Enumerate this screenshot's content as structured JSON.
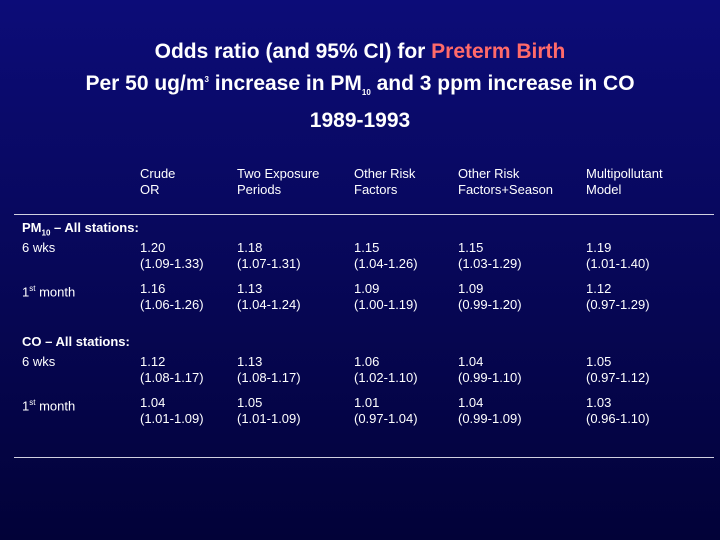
{
  "title": {
    "line1": "Odds ratio (and 95% CI) for ",
    "highlight": "Preterm Birth",
    "line2": [
      "Per 50 ug/m",
      "3",
      " increase in PM",
      "10",
      " and 3 ppm increase in CO"
    ],
    "line3": "1989-1993"
  },
  "table": {
    "headers": [
      [
        "Crude",
        "OR"
      ],
      [
        "Two Exposure",
        "Periods"
      ],
      [
        "Other Risk",
        "Factors"
      ],
      [
        "Other Risk",
        "Factors+Season"
      ],
      [
        "Multipollutant",
        "Model"
      ]
    ],
    "groups": [
      {
        "label": [
          "PM",
          "10",
          " – All stations:"
        ],
        "rows": [
          {
            "label": [
              "6 wks"
            ],
            "cells": [
              [
                "1.20",
                "(1.09-1.33)"
              ],
              [
                "1.18",
                "(1.07-1.31)"
              ],
              [
                "1.15",
                "(1.04-1.26)"
              ],
              [
                "1.15",
                "(1.03-1.29)"
              ],
              [
                "1.19",
                "(1.01-1.40)"
              ]
            ]
          },
          {
            "label": [
              "1",
              "st",
              " month"
            ],
            "cells": [
              [
                "1.16",
                "(1.06-1.26)"
              ],
              [
                "1.13",
                "(1.04-1.24)"
              ],
              [
                "1.09",
                "(1.00-1.19)"
              ],
              [
                "1.09",
                "(0.99-1.20)"
              ],
              [
                "1.12",
                "(0.97-1.29)"
              ]
            ]
          }
        ]
      },
      {
        "label": [
          "CO – All stations:"
        ],
        "rows": [
          {
            "label": [
              "6 wks"
            ],
            "cells": [
              [
                "1.12",
                "(1.08-1.17)"
              ],
              [
                "1.13",
                "(1.08-1.17)"
              ],
              [
                "1.06",
                "(1.02-1.10)"
              ],
              [
                "1.04",
                "(0.99-1.10)"
              ],
              [
                "1.05",
                "(0.97-1.12)"
              ]
            ]
          },
          {
            "label": [
              "1",
              "st",
              " month"
            ],
            "cells": [
              [
                "1.04",
                "(1.01-1.09)"
              ],
              [
                "1.05",
                "(1.01-1.09)"
              ],
              [
                "1.01",
                "(0.97-1.04)"
              ],
              [
                "1.04",
                "(0.99-1.09)"
              ],
              [
                "1.03",
                "(0.96-1.10)"
              ]
            ]
          }
        ]
      }
    ]
  }
}
